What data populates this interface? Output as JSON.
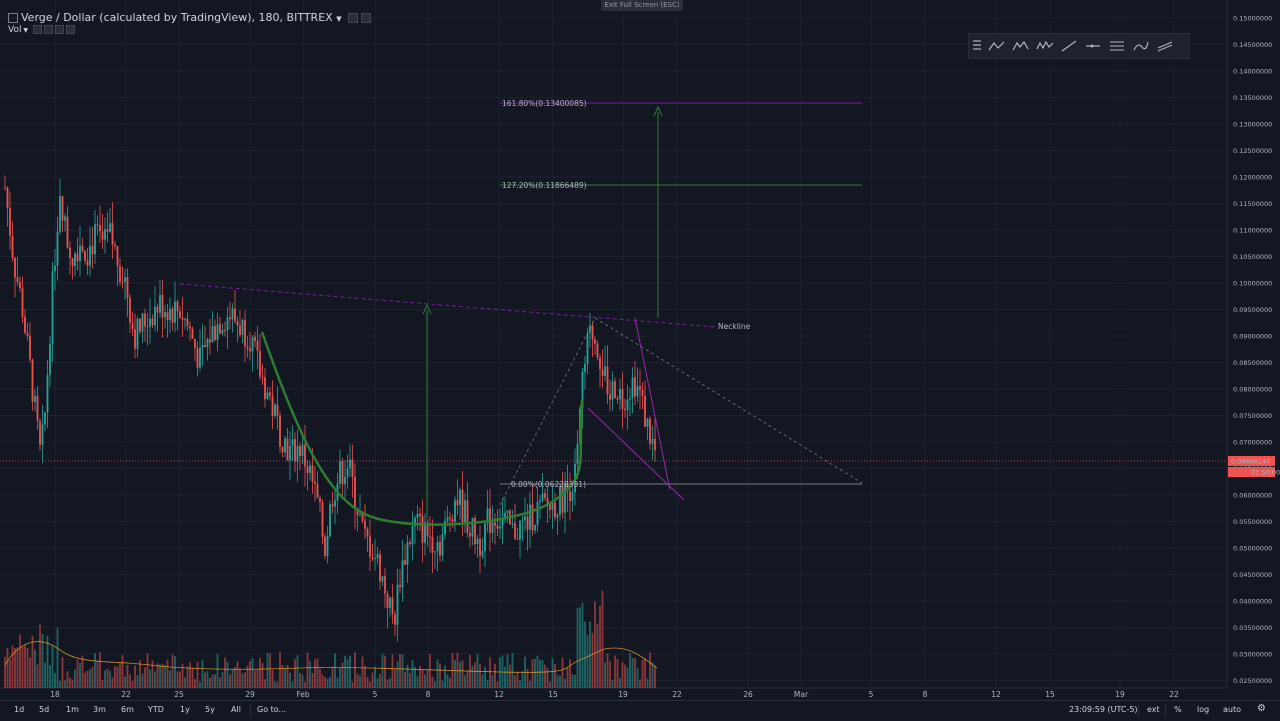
{
  "header": {
    "title": "Verge / Dollar (calculated by TradingView), 180, BITTREX",
    "indicator": "Vol"
  },
  "exit_fullscreen": "Exit Full Screen (ESC)",
  "price_axis": {
    "ticks": [
      "0.15000000",
      "0.14500000",
      "0.14000000",
      "0.13500000",
      "0.13000000",
      "0.12500000",
      "0.12000000",
      "0.11500000",
      "0.11000000",
      "0.10500000",
      "0.10000000",
      "0.09500000",
      "0.09000000",
      "0.08500000",
      "0.08000000",
      "0.07500000",
      "0.07000000",
      "0.06500000",
      "0.06000000",
      "0.05500000",
      "0.05000000",
      "0.04500000",
      "0.04000000",
      "0.03500000",
      "0.03000000",
      "0.02500000"
    ],
    "current_price": "0.06666240",
    "countdown": "01:50:00"
  },
  "time_axis": {
    "ticks": [
      "18",
      "22",
      "25",
      "29",
      "Feb",
      "5",
      "8",
      "12",
      "15",
      "19",
      "22",
      "26",
      "Mar",
      "5",
      "8",
      "12",
      "15",
      "19",
      "22"
    ]
  },
  "annotations": {
    "fib_1618": "161.80%(0.13400085)",
    "fib_1272": "127.20%(0.11866489)",
    "fib_0": "0.00%(0.06228331)",
    "neckline": "Neckline"
  },
  "colors": {
    "background": "#131722",
    "up": "#26a69a",
    "down": "#ef5350",
    "fib_purple": "#7b1fa2",
    "fib_green": "#2e7d32",
    "price_tag": "#ef5350"
  },
  "drawing_toolbar": {
    "tools": [
      "elliott-abc-icon",
      "elliott-abcde-icon",
      "elliott-wave-icon",
      "trend-line-icon",
      "horizontal-ray-icon",
      "fib-retracement-icon",
      "brush-icon",
      "channel-icon"
    ]
  },
  "bottom_bar": {
    "ranges": [
      "1d",
      "5d",
      "1m",
      "3m",
      "6m",
      "YTD",
      "1y",
      "5y",
      "All"
    ],
    "goto": "Go to...",
    "clock": "23:09:59 (UTC-5)",
    "ext": "ext",
    "pct": "%",
    "log": "log",
    "auto": "auto"
  }
}
